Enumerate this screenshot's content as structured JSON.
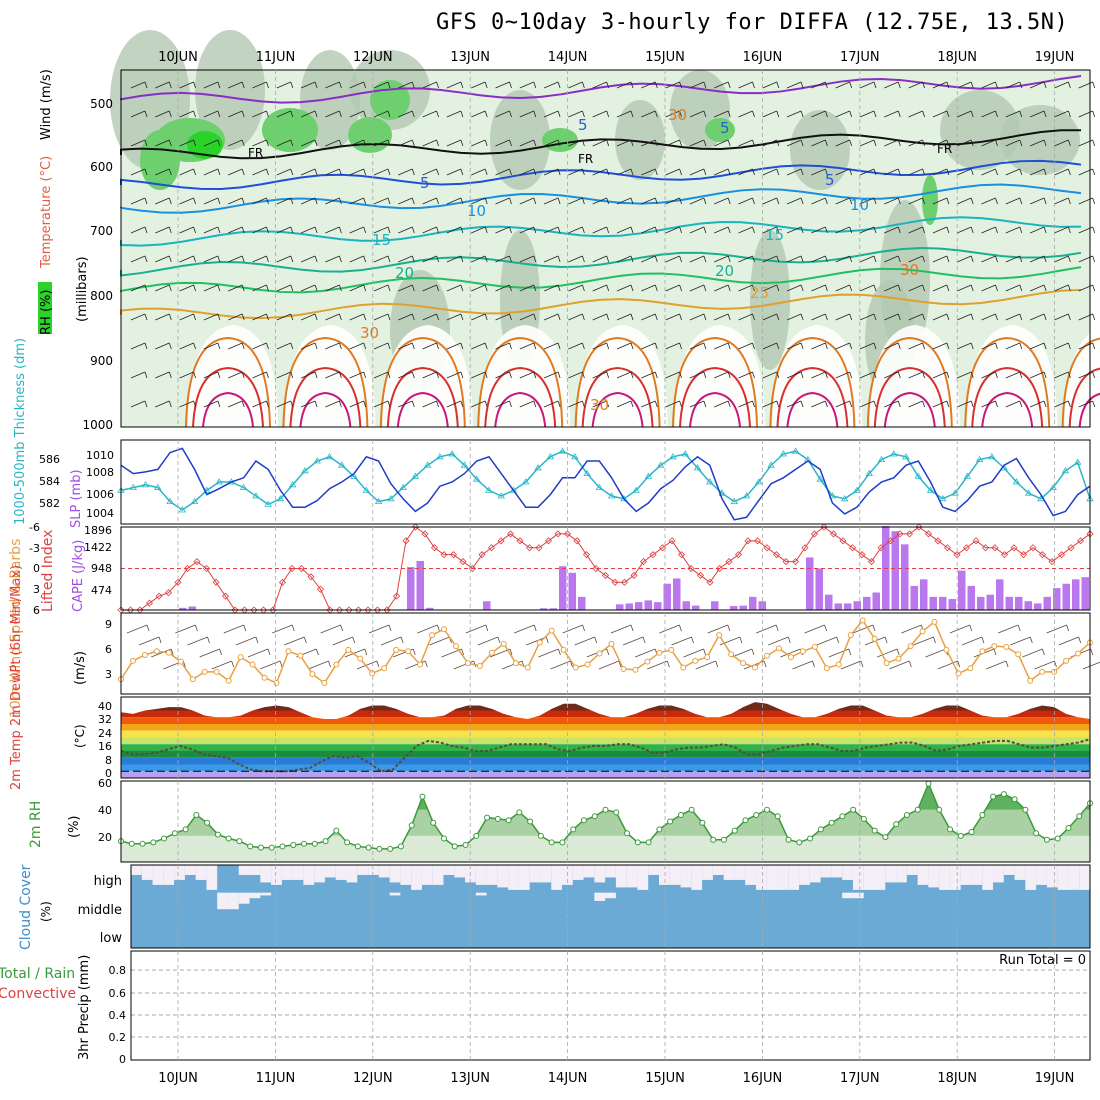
{
  "title": "GFS 0~10day 3-hourly for DIFFA (12.75E, 13.5N)",
  "dates": [
    "10JUN",
    "11JUN",
    "12JUN",
    "13JUN",
    "14JUN",
    "15JUN",
    "16JUN",
    "17JUN",
    "18JUN",
    "19JUN"
  ],
  "colors": {
    "grid": "#a8a8a8",
    "frame": "#000",
    "rh_light": "#e3f1e1",
    "rh_mid": "#b3c8b2",
    "rh_dark": "#6ecf6e",
    "rh_bright": "#2ad22a",
    "slp": "#1e3cc8",
    "thickness": "#29b6c8",
    "lifted": "#e04040",
    "cape": "#bb77ee",
    "wind10": "#e8a040",
    "barb": "#5a4a3a",
    "rh2m": "#3a9a3a",
    "cloud": "#6aaad4",
    "cloud_clear": "#f4eef6"
  },
  "panels": {
    "upper": {
      "ylabel_rh": "RH (%)",
      "ylabel_temp": "Temperature (°C)",
      "ylabel_wind": "Wind (m/s)",
      "ylabel_units": "(millibars)",
      "pressure_levels": [
        "500",
        "600",
        "700",
        "800",
        "900",
        "1000"
      ],
      "contour_labels": [
        "FR",
        "FR",
        "FR",
        "5",
        "5",
        "5",
        "5",
        "10",
        "10",
        "15",
        "15",
        "20",
        "20",
        "25",
        "30",
        "30",
        "30",
        "30"
      ]
    },
    "slp_thick": {
      "ylabel_left": "1000-500mb Thickness (dm)",
      "ylabel_right": "SLP (mb)",
      "left_ticks": [
        "586",
        "584",
        "582"
      ],
      "right_ticks": [
        "1010",
        "1008",
        "1006",
        "1004"
      ]
    },
    "cape_li": {
      "ylabel_left": "Lifted Index",
      "ylabel_right": "CAPE (J/kg)",
      "left_ticks": [
        "-6",
        "-3",
        "0",
        "3",
        "6"
      ],
      "right_ticks": [
        "1896",
        "1422",
        "948",
        "474"
      ]
    },
    "wind10": {
      "ylabel_left": "10m Wind Speed & Barbs",
      "ylabel_units": "(m/s)",
      "ticks": [
        "9",
        "6",
        "3"
      ]
    },
    "temp2m": {
      "ylabel_left": "2m Temp 2m DewPt (6hr Min/Max)",
      "ylabel_units": "(°C)",
      "ticks": [
        "40",
        "32",
        "24",
        "16",
        "8",
        "0"
      ]
    },
    "rh2m": {
      "ylabel_left": "2m RH",
      "ylabel_units": "(%)",
      "ticks": [
        "60",
        "40",
        "20"
      ]
    },
    "cloud": {
      "ylabel_left": "Cloud Cover",
      "ylabel_units": "(%)",
      "layers": [
        "high",
        "middle",
        "low"
      ]
    },
    "precip": {
      "ylabel_left": "Total / Rain Convective",
      "ylabel_units": "3hr Precip (mm)",
      "ticks": [
        "0.8",
        "0.6",
        "0.4",
        "0.2",
        "0"
      ],
      "run_total": "Run Total = 0"
    }
  },
  "chart_data": [
    {
      "type": "line",
      "name": "slp_and_thickness",
      "x_step_hours": 3,
      "series": [
        {
          "name": "SLP (mb)",
          "values": [
            1009.0,
            1008.0,
            1008.2,
            1008.5,
            1010.5,
            1011.0,
            1008.5,
            1005.5,
            1006.2,
            1007.0,
            1007.5,
            1009.5,
            1008.5,
            1006.0,
            1004.0,
            1004.0,
            1004.8,
            1006.2,
            1007.0,
            1008.0,
            1010.0,
            1009.5,
            1006.8,
            1005.0,
            1003.5,
            1004.5,
            1006.5,
            1007.0,
            1008.0,
            1009.5,
            1010.0,
            1008.0,
            1006.0,
            1004.0,
            1004.0,
            1005.5,
            1007.5,
            1007.5,
            1009.5,
            1009.5,
            1007.5,
            1005.0,
            1003.5,
            1004.5,
            1006.2,
            1007.2,
            1008.8,
            1010.0,
            1009.0,
            1005.0,
            1002.5,
            1002.8,
            1004.8,
            1006.8,
            1007.5,
            1008.5,
            1009.5,
            1008.5,
            1004.5,
            1003.2,
            1004.0,
            1005.8,
            1007.0,
            1007.5,
            1009.0,
            1009.5,
            1007.0,
            1004.0,
            1003.5,
            1004.8,
            1006.5,
            1007.0,
            1009.0,
            1009.8,
            1007.5,
            1005.5,
            1003.0,
            1003.5,
            1005.5,
            1006.5
          ]
        },
        {
          "name": "1000-500mb Thickness (dm)",
          "values": [
            583.4,
            583.6,
            583.8,
            583.6,
            582.6,
            582.0,
            582.6,
            583.4,
            584.0,
            584.0,
            583.6,
            583.0,
            582.4,
            582.8,
            583.8,
            584.8,
            585.5,
            585.8,
            585.2,
            584.4,
            583.4,
            582.6,
            582.8,
            583.6,
            584.4,
            585.2,
            585.8,
            586.0,
            585.2,
            584.2,
            583.4,
            583.0,
            583.4,
            584.0,
            585.0,
            585.8,
            586.2,
            585.8,
            584.6,
            583.6,
            583.0,
            582.8,
            583.4,
            584.4,
            585.2,
            585.8,
            586.0,
            585.0,
            584.0,
            583.2,
            582.6,
            583.0,
            584.0,
            585.2,
            586.0,
            586.2,
            585.6,
            584.2,
            583.0,
            582.8,
            583.4,
            584.6,
            585.6,
            586.0,
            585.8,
            584.4,
            583.4,
            582.8,
            583.2,
            584.4,
            585.6,
            585.8,
            585.0,
            584.0,
            583.2,
            582.8,
            583.6,
            584.8,
            585.4,
            582.8
          ]
        }
      ],
      "ylim_slp": [
        1002,
        1012
      ],
      "ylim_thickness": [
        581,
        587
      ]
    },
    {
      "type": "bar",
      "name": "cape_and_lifted_index",
      "series": [
        {
          "name": "CAPE (J/kg)",
          "values": [
            0,
            0,
            0,
            0,
            0,
            0,
            50,
            80,
            0,
            0,
            0,
            0,
            0,
            0,
            0,
            0,
            0,
            0,
            0,
            0,
            0,
            0,
            0,
            0,
            0,
            0,
            0,
            0,
            0,
            0,
            980,
            1120,
            50,
            0,
            0,
            0,
            0,
            0,
            200,
            0,
            0,
            0,
            0,
            0,
            40,
            40,
            1000,
            850,
            300,
            0,
            0,
            0,
            130,
            150,
            180,
            220,
            180,
            600,
            720,
            200,
            100,
            0,
            200,
            0,
            90,
            100,
            300,
            200,
            0,
            0,
            0,
            0,
            1200,
            950,
            350,
            150,
            150,
            200,
            300,
            400,
            1920,
            1800,
            1500,
            550,
            700,
            300,
            300,
            250,
            900,
            550,
            300,
            350,
            700,
            300,
            300,
            200,
            150,
            300,
            500,
            600,
            700,
            750
          ]
        },
        {
          "name": "Lifted Index",
          "values": [
            6,
            6,
            6,
            5,
            4,
            3.5,
            2,
            0,
            -1,
            0,
            2,
            4,
            6,
            6,
            6,
            6,
            6,
            2,
            0,
            0,
            1.2,
            3,
            6,
            6,
            6,
            6,
            6,
            6,
            6,
            4,
            -4,
            -6,
            -5,
            -3,
            -2,
            -2,
            -1,
            0,
            -2,
            -3,
            -4,
            -5,
            -4,
            -3,
            -3,
            -4,
            -5,
            -5,
            -4,
            -2,
            0,
            1,
            2,
            2,
            1,
            -1,
            -2,
            -3,
            -4,
            -2,
            0,
            1,
            2,
            0,
            -1,
            -2,
            -4,
            -4,
            -3,
            -2,
            -1,
            -1,
            -3,
            -5,
            -6,
            -5,
            -4,
            -3,
            -2,
            -1,
            -3,
            -4,
            -5,
            -5,
            -6,
            -5,
            -4,
            -3,
            -2,
            -3,
            -4,
            -3,
            -3,
            -2,
            -3,
            -2,
            -3,
            -2,
            -1,
            -2,
            -3,
            -4,
            -5
          ]
        }
      ],
      "ylim_cape": [
        0,
        1896
      ],
      "ylim_li": [
        6,
        -6
      ]
    },
    {
      "type": "line",
      "name": "wind10m_speed",
      "series": [
        {
          "name": "10m Wind Speed (m/s)",
          "values": [
            2.0,
            4.5,
            5.3,
            5.8,
            5.6,
            4.4,
            2.0,
            3.0,
            3.0,
            1.8,
            5.0,
            4.0,
            2.2,
            1.5,
            5.8,
            5.2,
            2.7,
            1.5,
            4.0,
            6.0,
            4.8,
            2.8,
            3.5,
            6.0,
            5.8,
            4.0,
            8.0,
            8.8,
            6.5,
            4.2,
            3.8,
            5.6,
            6.8,
            4.2,
            3.6,
            7.0,
            8.6,
            6.0,
            3.6,
            4.0,
            5.5,
            6.8,
            3.4,
            3.3,
            4.4,
            5.6,
            6.0,
            3.6,
            4.5,
            5.0,
            8.0,
            5.4,
            4.2,
            3.6,
            5.2,
            6.2,
            5.0,
            5.8,
            6.4,
            3.5,
            4.0,
            8.0,
            10.0,
            7.5,
            4.2,
            4.8,
            6.5,
            8.5,
            9.8,
            6.0,
            2.8,
            3.5,
            5.8,
            6.5,
            6.4,
            5.4,
            1.8,
            3.0,
            3.0,
            4.5,
            5.5,
            7.0
          ]
        }
      ],
      "ylim": [
        0,
        11
      ]
    },
    {
      "type": "area",
      "name": "temp_dewpoint_2m",
      "series": [
        {
          "name": "2m Temp (°C)",
          "values": [
            35,
            34,
            36,
            37,
            38,
            38,
            36,
            33,
            32,
            32,
            33,
            36,
            38,
            39,
            38,
            35,
            32,
            31,
            31,
            33,
            37,
            39,
            39,
            37,
            34,
            32,
            32,
            33,
            37,
            39,
            39,
            37,
            34,
            32,
            31,
            33,
            37,
            40,
            40,
            37,
            34,
            32,
            32,
            34,
            37,
            39,
            39,
            37,
            34,
            32,
            32,
            34,
            38,
            41,
            40,
            37,
            34,
            32,
            32,
            34,
            37,
            39,
            39,
            36,
            33,
            32,
            32,
            34,
            37,
            39,
            39,
            36,
            33,
            32,
            32,
            34,
            37,
            39,
            38,
            34,
            32,
            31
          ]
        },
        {
          "name": "2m DewPt (°C)",
          "values": [
            12,
            10,
            10,
            11,
            13,
            15,
            13,
            10,
            9,
            8,
            4,
            1,
            0,
            0,
            0,
            1,
            2,
            6,
            9,
            8,
            9,
            5,
            0,
            1,
            8,
            15,
            18,
            17,
            15,
            14,
            12,
            12,
            14,
            16,
            16,
            16,
            16,
            13,
            12,
            14,
            15,
            15,
            16,
            16,
            14,
            11,
            11,
            13,
            14,
            14,
            15,
            16,
            14,
            10,
            10,
            12,
            14,
            15,
            16,
            16,
            14,
            12,
            12,
            14,
            15,
            16,
            17,
            17,
            15,
            12,
            13,
            15,
            16,
            17,
            18,
            18,
            16,
            14,
            14,
            15,
            16,
            17,
            19
          ]
        }
      ],
      "ylim": [
        -4,
        44
      ]
    },
    {
      "type": "area",
      "name": "rh_2m",
      "series": [
        {
          "name": "2m RH (%)",
          "values": [
            16,
            14,
            14,
            15,
            18,
            22,
            25,
            36,
            30,
            21,
            18,
            16,
            12,
            11,
            11,
            12,
            13,
            14,
            14,
            16,
            24,
            15,
            12,
            11,
            10,
            10,
            12,
            28,
            50,
            30,
            18,
            12,
            13,
            20,
            34,
            33,
            32,
            38,
            31,
            20,
            15,
            15,
            25,
            32,
            35,
            40,
            38,
            22,
            15,
            15,
            25,
            31,
            36,
            40,
            30,
            17,
            17,
            24,
            32,
            36,
            40,
            35,
            17,
            15,
            18,
            25,
            30,
            35,
            40,
            33,
            24,
            19,
            29,
            36,
            40,
            60,
            40,
            25,
            20,
            23,
            36,
            50,
            52,
            48,
            40,
            22,
            17,
            18,
            26,
            35,
            45
          ]
        }
      ],
      "ylim": [
        0,
        62
      ]
    },
    {
      "type": "bar",
      "name": "cloud_cover",
      "series": [
        {
          "name": "high",
          "values": [
            60,
            40,
            20,
            20,
            40,
            60,
            40,
            0,
            100,
            100,
            60,
            60,
            30,
            20,
            40,
            40,
            20,
            30,
            50,
            40,
            30,
            60,
            60,
            50,
            30,
            20,
            0,
            20,
            20,
            60,
            50,
            30,
            20,
            20,
            10,
            0,
            0,
            30,
            30,
            0,
            20,
            40,
            50,
            30,
            50,
            10,
            10,
            0,
            60,
            20,
            20,
            10,
            0,
            40,
            60,
            40,
            40,
            20,
            0,
            0,
            0,
            0,
            20,
            30,
            50,
            50,
            40,
            0,
            0,
            0,
            30,
            30,
            60,
            20,
            10,
            0,
            0,
            20,
            20,
            0,
            30,
            60,
            40,
            0,
            20,
            10,
            0,
            0,
            0
          ]
        },
        {
          "name": "middle",
          "values": [
            0,
            0,
            0,
            0,
            0,
            0,
            0,
            0,
            60,
            60,
            40,
            20,
            10,
            0,
            0,
            0,
            0,
            0,
            0,
            0,
            0,
            0,
            0,
            0,
            10,
            0,
            0,
            0,
            0,
            0,
            0,
            0,
            10,
            0,
            0,
            0,
            0,
            0,
            0,
            0,
            0,
            0,
            0,
            30,
            20,
            0,
            0,
            0,
            0,
            0,
            0,
            0,
            0,
            0,
            0,
            0,
            0,
            0,
            0,
            0,
            0,
            0,
            0,
            0,
            0,
            0,
            20,
            20,
            0,
            0,
            0,
            0,
            0,
            0,
            0,
            0,
            0,
            0,
            0,
            0,
            0,
            0,
            0,
            0,
            0,
            0,
            0,
            0,
            0,
            0,
            0
          ]
        },
        {
          "name": "low",
          "values": []
        }
      ],
      "ylim": [
        0,
        100
      ]
    },
    {
      "type": "bar",
      "name": "precip_3hr",
      "series": [
        {
          "name": "3hr Precip (mm)",
          "values": []
        }
      ],
      "ylim": [
        0,
        1
      ]
    }
  ]
}
